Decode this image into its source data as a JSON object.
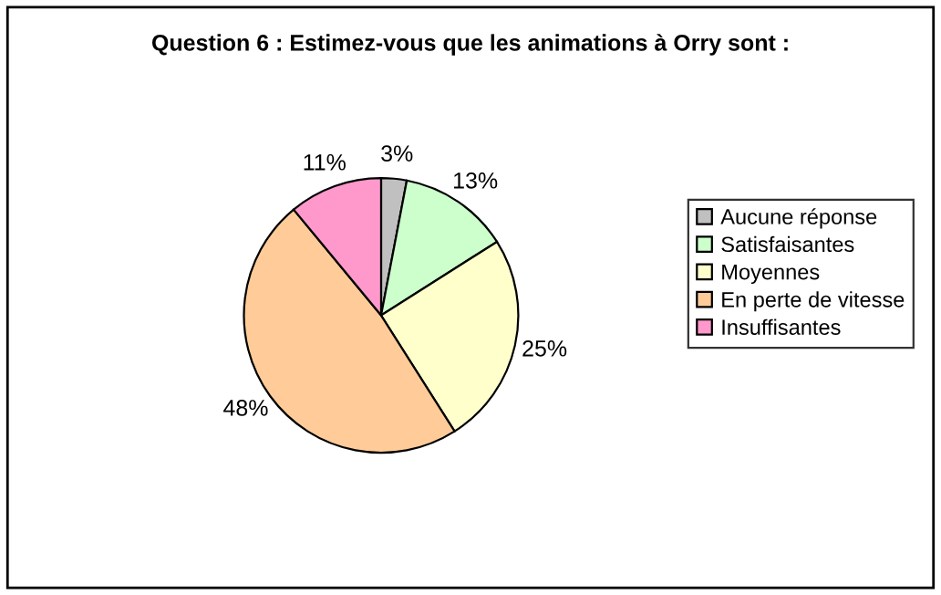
{
  "chart_data": {
    "type": "pie",
    "title": "Question 6 : Estimez-vous que les animations à Orry sont :",
    "categories": [
      "Aucune réponse",
      "Satisfaisantes",
      "Moyennes",
      "En perte de vitesse",
      "Insuffisantes"
    ],
    "values": [
      3,
      13,
      25,
      48,
      11
    ],
    "colors": [
      "#c0c0c0",
      "#ccffcc",
      "#ffffcc",
      "#ffcc99",
      "#ff99cc"
    ],
    "value_labels": [
      "3%",
      "13%",
      "25%",
      "48%",
      "11%"
    ],
    "legend": "right"
  }
}
